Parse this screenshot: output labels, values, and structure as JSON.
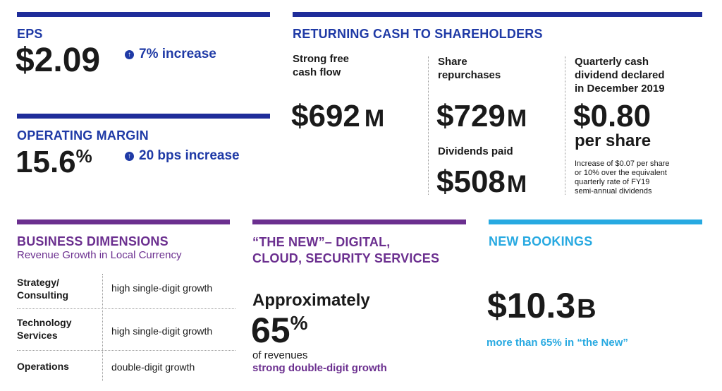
{
  "eps": {
    "heading": "EPS",
    "value": "$2.09",
    "increase": "7% increase"
  },
  "operating_margin": {
    "heading": "OPERATING MARGIN",
    "value": "15.6",
    "value_suffix": "%",
    "increase": "20 bps increase"
  },
  "returning_cash": {
    "heading": "RETURNING CASH TO SHAREHOLDERS",
    "free_cash_flow": {
      "label_line1": "Strong free",
      "label_line2": "cash flow",
      "value": "$692",
      "unit": "M"
    },
    "share_repurchases": {
      "label_line1": "Share",
      "label_line2": "repurchases",
      "value": "$729",
      "unit": "M"
    },
    "dividends_paid": {
      "label": "Dividends paid",
      "value": "$508",
      "unit": "M"
    },
    "quarterly_dividend": {
      "label_line1": "Quarterly cash",
      "label_line2": "dividend declared",
      "label_line3": "in December 2019",
      "value": "$0.80",
      "sub": "per share",
      "note_line1": "Increase of $0.07 per share",
      "note_line2": "or 10% over the equivalent",
      "note_line3": "quarterly rate of FY19",
      "note_line4": "semi-annual dividends"
    }
  },
  "business_dimensions": {
    "heading": "BUSINESS DIMENSIONS",
    "subheading": "Revenue Growth in Local Currency",
    "rows": [
      {
        "cat_line1": "Strategy/",
        "cat_line2": "Consulting",
        "growth": "high single-digit growth"
      },
      {
        "cat_line1": "Technology",
        "cat_line2": "Services",
        "growth": "high single-digit growth"
      },
      {
        "cat_line1": "Operations",
        "cat_line2": "",
        "growth": "double-digit growth"
      }
    ]
  },
  "the_new": {
    "heading_line1": "“THE NEW”– DIGITAL,",
    "heading_line2": "CLOUD, SECURITY SERVICES",
    "approx": "Approximately",
    "value": "65",
    "value_suffix": "%",
    "of_revenues": "of revenues",
    "growth": "strong double-digit growth"
  },
  "new_bookings": {
    "heading": "NEW BOOKINGS",
    "value": "$10.3",
    "unit": "B",
    "note": "more than 65% in “the New”"
  },
  "colors": {
    "blue": "#1f3aa6",
    "purple": "#6b2f8f",
    "cyan": "#27a9e1",
    "text": "#1a1a1a"
  }
}
